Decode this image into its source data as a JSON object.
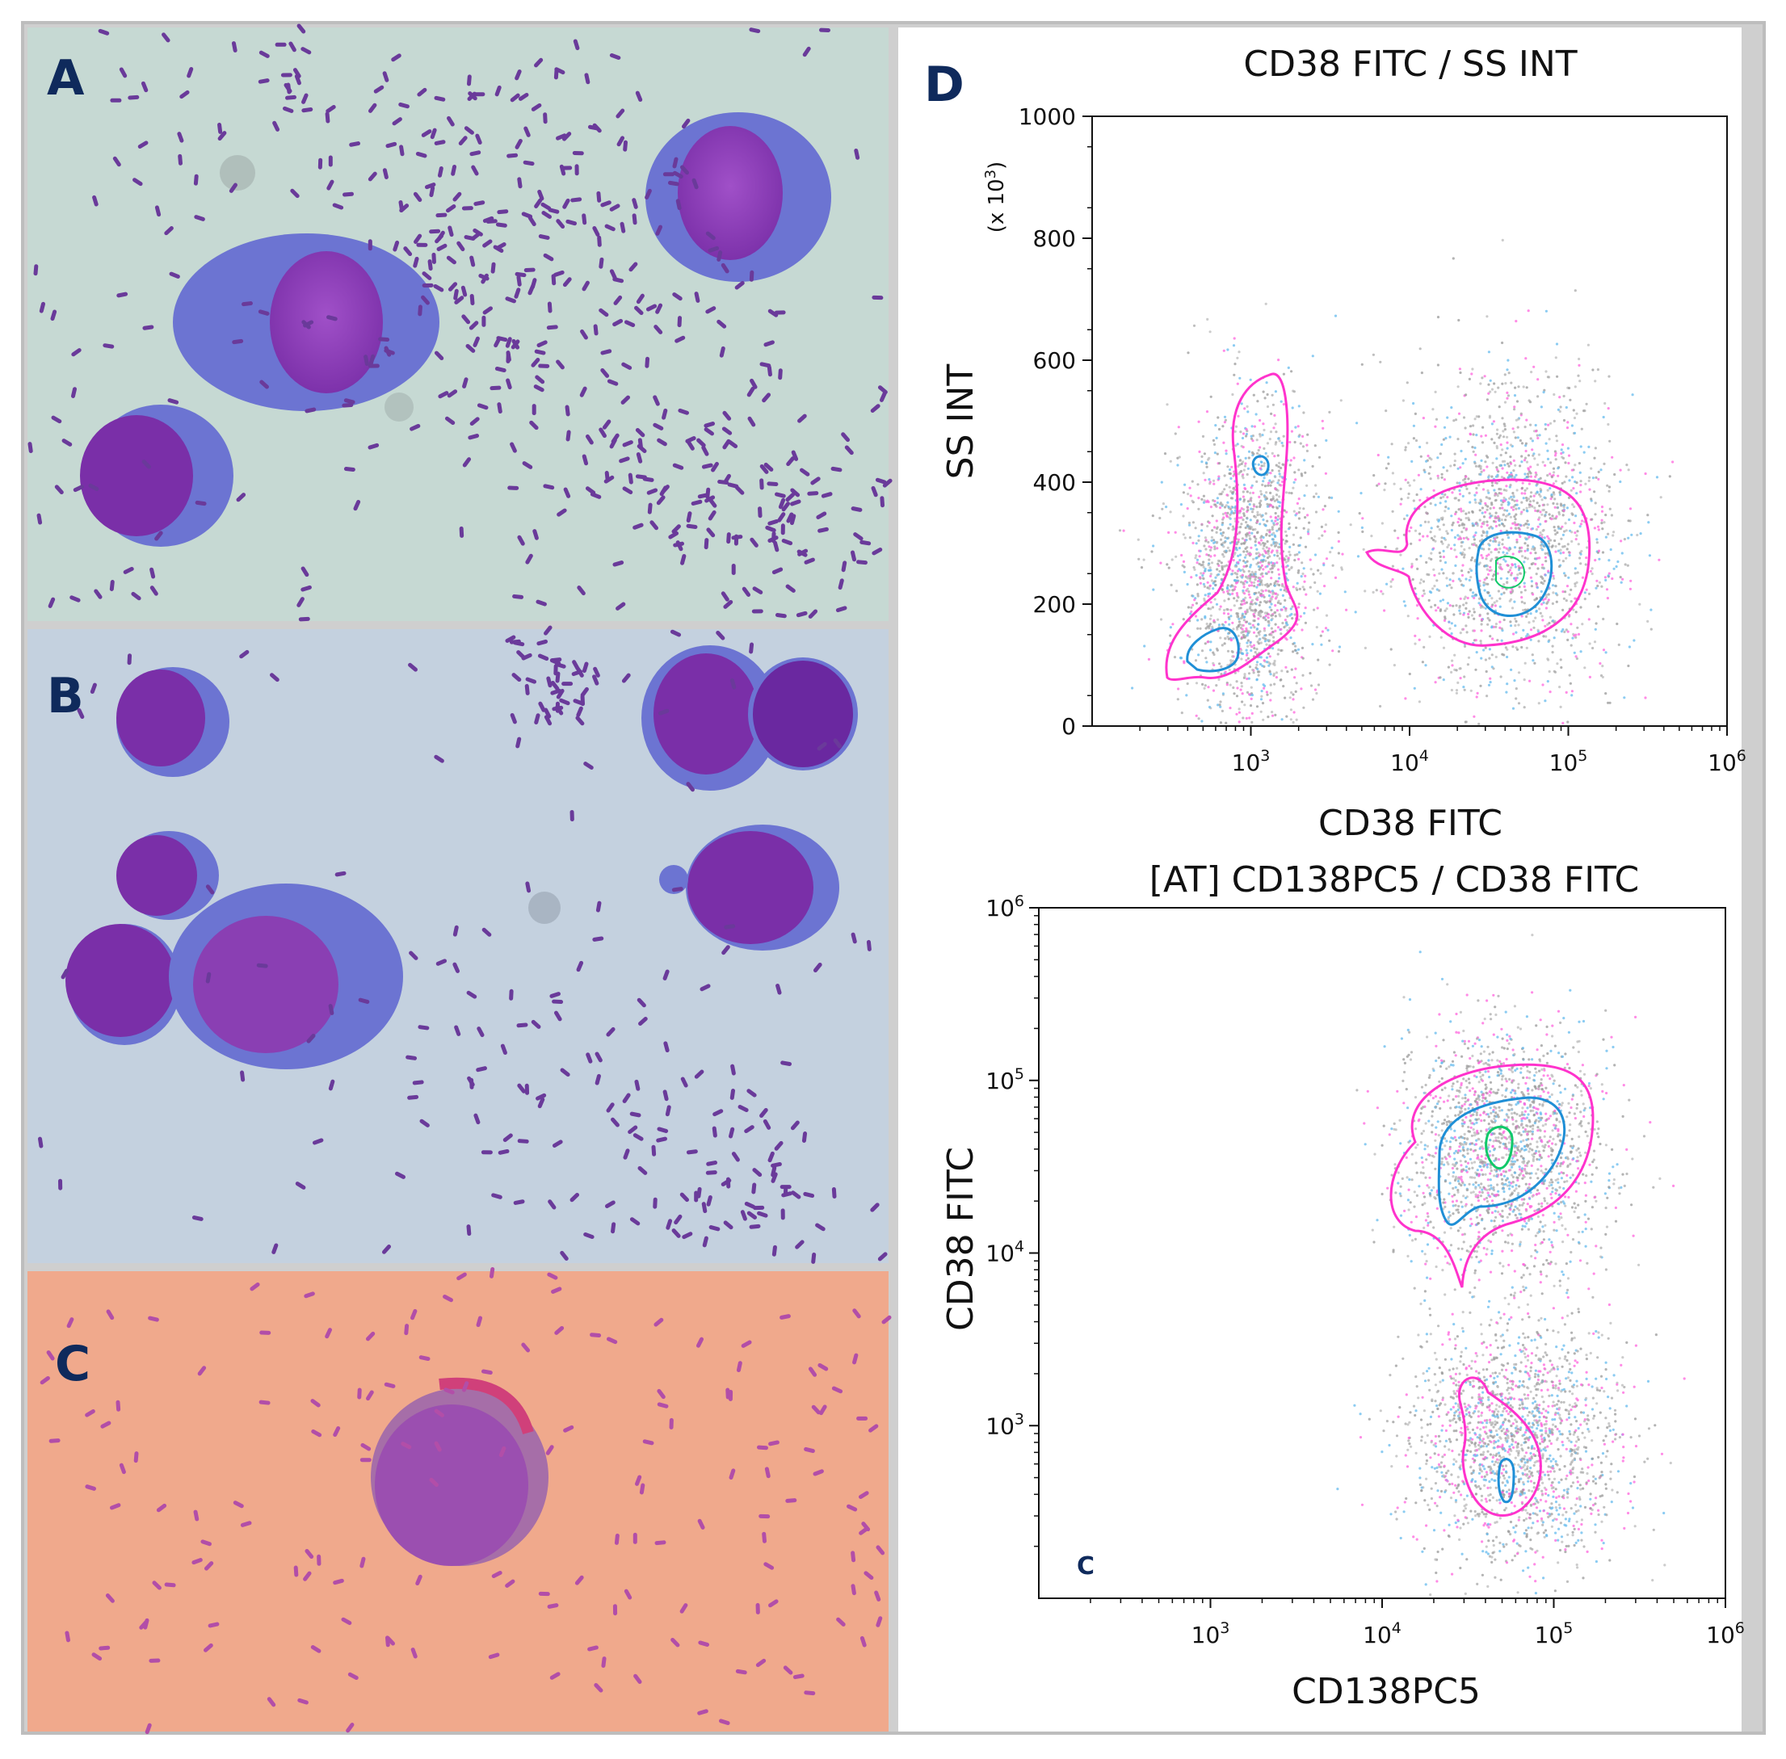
{
  "panels": {
    "a_label": "A",
    "b_label": "B",
    "c_label": "C",
    "d_label": "D"
  },
  "colors": {
    "nucleus": "#8a3fb3",
    "cytoplasm": "#6f6fd0",
    "bacteria": "#6a3a9a",
    "contour_outer": "#ff33cc",
    "contour_mid": "#1f8fd6",
    "contour_inner": "#11c96a",
    "panel_letter": "#0f2a5c"
  },
  "chart_data": [
    {
      "type": "scatter",
      "title": "CD38 FITC  /  SS INT",
      "xlabel": "CD38 FITC",
      "ylabel": "SS INT",
      "yunit_label": "(x 10",
      "yunit_exp": "3",
      "yunit_close": ")",
      "x_scale": "log",
      "xlim": [
        100,
        1000000
      ],
      "ylim": [
        0,
        1000
      ],
      "xticks": [
        {
          "base": "10",
          "exp": "3",
          "value": 1000
        },
        {
          "base": "10",
          "exp": "4",
          "value": 10000
        },
        {
          "base": "10",
          "exp": "5",
          "value": 100000
        },
        {
          "base": "10",
          "exp": "6",
          "value": 1000000
        }
      ],
      "yticks": [
        {
          "label": "0",
          "value": 0
        },
        {
          "label": "200",
          "value": 200
        },
        {
          "label": "400",
          "value": 400
        },
        {
          "label": "600",
          "value": 600
        },
        {
          "label": "800",
          "value": 800
        },
        {
          "label": "1000",
          "value": 1000
        }
      ],
      "populations": [
        {
          "x_center": 1000,
          "y_center": 250
        },
        {
          "x_center": 40000,
          "y_center": 310
        }
      ]
    },
    {
      "type": "scatter",
      "title": "[AT] CD138PC5  /  CD38 FITC",
      "xlabel": "CD138PC5",
      "ylabel": "CD38 FITC",
      "corner_label": "C",
      "x_scale": "log",
      "y_scale": "log",
      "xlim": [
        100,
        1000000
      ],
      "ylim": [
        100,
        1000000
      ],
      "xticks": [
        {
          "base": "10",
          "exp": "3",
          "value": 1000
        },
        {
          "base": "10",
          "exp": "4",
          "value": 10000
        },
        {
          "base": "10",
          "exp": "5",
          "value": 100000
        },
        {
          "base": "10",
          "exp": "6",
          "value": 1000000
        }
      ],
      "yticks": [
        {
          "base": "10",
          "exp": "3",
          "value": 1000
        },
        {
          "base": "10",
          "exp": "4",
          "value": 10000
        },
        {
          "base": "10",
          "exp": "5",
          "value": 100000
        },
        {
          "base": "10",
          "exp": "6",
          "value": 1000000
        }
      ],
      "populations": [
        {
          "x_center": 50000,
          "y_center": 40000
        },
        {
          "x_center": 60000,
          "y_center": 800
        }
      ]
    }
  ]
}
